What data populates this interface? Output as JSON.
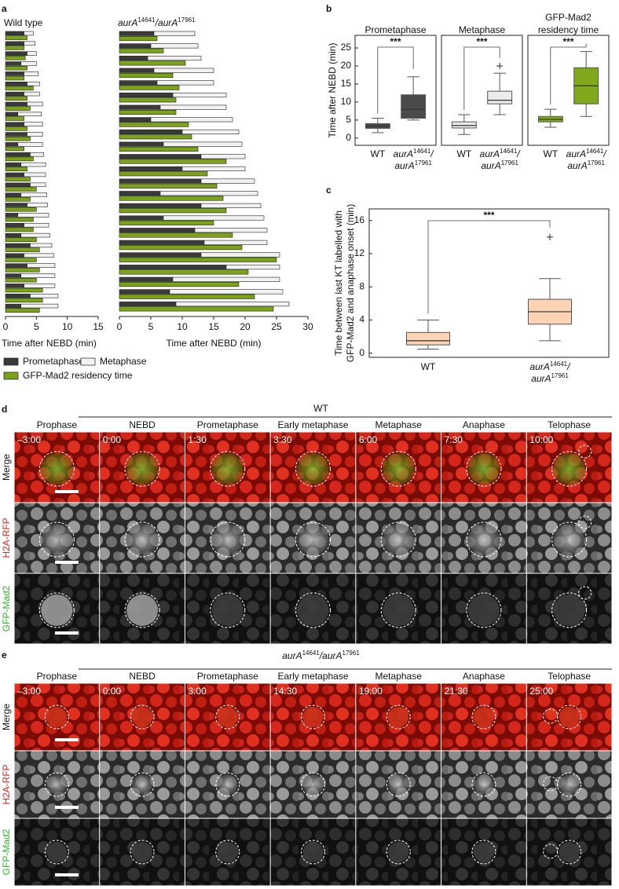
{
  "panel_labels": [
    "a",
    "b",
    "c",
    "d",
    "e"
  ],
  "chart_data": [
    {
      "type": "paired-hbar",
      "legend": [
        {
          "name": "Prometaphase",
          "color": "#3a3a3a"
        },
        {
          "name": "Metaphase",
          "color": "#f2f2f2"
        },
        {
          "name": "GFP-Mad2 residency time",
          "color": "#7aa317"
        }
      ],
      "groups": [
        {
          "title": [
            [
              "Wild type"
            ]
          ],
          "xlabel": "Time after NEBD (min)",
          "xlim": [
            0,
            15
          ],
          "xticks": [
            0,
            5,
            10,
            15
          ],
          "series": [
            {
              "values": [
                3,
                3,
                3.5,
                2.5,
                3,
                3.5,
                3,
                3.5,
                2,
                3,
                3.5,
                2,
                4,
                2.5,
                3,
                4,
                2.5,
                3.5,
                2,
                3,
                2.5,
                4,
                3,
                3.5,
                2.5,
                3,
                4,
                2.5
              ]
            },
            {
              "values": [
                1.5,
                1.8,
                1.5,
                2.5,
                2.3,
                2,
                2.5,
                2.5,
                3.8,
                3,
                2.5,
                4,
                2.2,
                4,
                3.5,
                2.5,
                4.2,
                3.3,
                5,
                4,
                4.7,
                3.5,
                4.8,
                4.5,
                5.5,
                5,
                4.5,
                6
              ]
            },
            {
              "values": [
                3.5,
                3,
                3.2,
                3.5,
                3,
                4.5,
                3.5,
                4,
                3,
                3.5,
                4,
                3,
                4.5,
                3.5,
                4,
                5,
                4,
                5,
                4.5,
                4.5,
                5,
                5.5,
                5,
                5.5,
                5,
                6,
                6,
                5.5
              ]
            }
          ]
        },
        {
          "title": [
            [
              "aurA",
              "14641",
              "/aurA",
              "17961"
            ]
          ],
          "xlabel": "Time after NEBD (min)",
          "xlim": [
            0,
            30
          ],
          "xticks": [
            0,
            5,
            10,
            15,
            20,
            25,
            30
          ],
          "series": [
            {
              "values": [
                5.5,
                5,
                4.5,
                5.5,
                6,
                8.5,
                6.5,
                5,
                10,
                7,
                13,
                10,
                13,
                6.5,
                13,
                7,
                12,
                13.5,
                13,
                17,
                8.5,
                8,
                9
              ]
            },
            {
              "values": [
                6.5,
                7.5,
                8.5,
                9.5,
                9,
                8.5,
                10.5,
                13,
                9,
                12.5,
                7,
                10,
                8.5,
                15.5,
                9.5,
                16,
                11.5,
                10,
                12.5,
                8.5,
                17,
                18,
                18
              ]
            },
            {
              "values": [
                6,
                7,
                10.5,
                8.5,
                9.5,
                9,
                9,
                11,
                11.5,
                12.5,
                17,
                14,
                15.5,
                16.5,
                17,
                15,
                18,
                19.5,
                25,
                20.5,
                19,
                21.5,
                24.5
              ]
            }
          ]
        }
      ]
    },
    {
      "type": "box-panels",
      "ylabel": "Time after NEBD (min)",
      "ylim": [
        -2,
        28.5
      ],
      "yticks": [
        0,
        5,
        10,
        15,
        20,
        25
      ],
      "panels": [
        {
          "title": [
            [
              "Prometaphase"
            ]
          ],
          "color": "#4a4a4a",
          "sig": "***",
          "categories": [
            [
              [
                "WT"
              ]
            ],
            [
              [
                "aurA",
                "14641",
                "/"
              ],
              [
                "aurA",
                "17961"
              ]
            ]
          ],
          "boxes": [
            {
              "whislo": 1.5,
              "q1": 2.7,
              "med": 3.3,
              "q3": 4,
              "whishi": 5.5,
              "fliers": []
            },
            {
              "whislo": 5,
              "q1": 5.5,
              "med": 8,
              "q3": 12,
              "whishi": 17,
              "fliers": []
            }
          ]
        },
        {
          "title": [
            [
              "Metaphase"
            ]
          ],
          "color": "#ececec",
          "sig": "***",
          "categories": [
            [
              [
                "WT"
              ]
            ],
            [
              [
                "aurA",
                "14641",
                "/"
              ],
              [
                "aurA",
                "17961"
              ]
            ]
          ],
          "boxes": [
            {
              "whislo": 1,
              "q1": 2.8,
              "med": 3.5,
              "q3": 4.5,
              "whishi": 6.5,
              "fliers": []
            },
            {
              "whislo": 6.5,
              "q1": 9.5,
              "med": 10.5,
              "q3": 13,
              "whishi": 18,
              "fliers": [
                20
              ]
            }
          ]
        },
        {
          "title": [
            [
              "GFP-Mad2"
            ],
            [
              "residency time"
            ]
          ],
          "color": "#7fa81a",
          "sig": "***",
          "categories": [
            [
              [
                "WT"
              ]
            ],
            [
              [
                "aurA",
                "14641",
                "/"
              ],
              [
                "aurA",
                "17961"
              ]
            ]
          ],
          "boxes": [
            {
              "whislo": 3,
              "q1": 4.5,
              "med": 5.2,
              "q3": 6,
              "whishi": 8,
              "fliers": []
            },
            {
              "whislo": 6,
              "q1": 9.5,
              "med": 14.5,
              "q3": 19.5,
              "whishi": 24,
              "fliers": []
            }
          ]
        }
      ]
    },
    {
      "type": "box",
      "ylabel": [
        "Time between last KT labelled with",
        "GFP-Mad2 and anaphase onset (min)"
      ],
      "ylim": [
        -0.5,
        17.4
      ],
      "yticks": [
        0,
        4,
        8,
        12,
        16
      ],
      "color": "#fcd3b4",
      "sig": "***",
      "categories": [
        [
          [
            "WT"
          ]
        ],
        [
          [
            "aurA",
            "14641",
            "/"
          ],
          [
            "aurA",
            "17961"
          ]
        ]
      ],
      "boxes": [
        {
          "whislo": 0.5,
          "q1": 1,
          "med": 1.5,
          "q3": 2.5,
          "whishi": 4,
          "fliers": []
        },
        {
          "whislo": 1.5,
          "q1": 3.5,
          "med": 5,
          "q3": 6.5,
          "whishi": 9,
          "fliers": [
            14
          ]
        }
      ]
    }
  ],
  "micrographs": [
    {
      "title": [
        [
          "WT"
        ]
      ],
      "columns": [
        "Prophase",
        "NEBD",
        "Prometaphase",
        "Early metaphase",
        "Metaphase",
        "Anaphase",
        "Telophase"
      ],
      "times": [
        "–3:00",
        "0:00",
        "1:30",
        "3:30",
        "6:00",
        "7:30",
        "10:00"
      ],
      "rows": [
        "Merge",
        "H2A-RFP",
        "GFP-Mad2"
      ]
    },
    {
      "title": [
        [
          "aurA",
          "14641",
          "/aurA",
          "17961"
        ]
      ],
      "columns": [
        "Prophase",
        "NEBD",
        "Prometaphase",
        "Early metaphase",
        "Metaphase",
        "Anaphase",
        "Telophase"
      ],
      "times": [
        "–3:00",
        "0:00",
        "3:00",
        "14:30",
        "19:00",
        "21:30",
        "25:00"
      ],
      "rows": [
        "Merge",
        "H2A-RFP",
        "GFP-Mad2"
      ]
    }
  ]
}
